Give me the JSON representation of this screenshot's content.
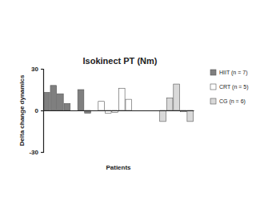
{
  "chart_data": {
    "type": "bar",
    "title": "Isokinect PT (Nm)",
    "x_label": "Patients",
    "y_label": "Delta change dynamics",
    "categories": [
      null,
      null,
      null,
      null,
      null,
      null,
      null,
      null,
      null,
      null,
      null,
      null,
      null,
      null,
      null,
      null,
      null,
      null,
      null,
      null,
      null,
      null
    ],
    "series": [
      {
        "name": "HIIT (n = 7)",
        "color": "#7f7f7f",
        "values": [
          13,
          18,
          12,
          5,
          0,
          15,
          -2,
          null,
          null,
          null,
          null,
          null,
          null,
          null,
          null,
          null,
          null,
          null,
          null,
          null,
          null,
          null
        ]
      },
      {
        "name": "CRT (n = 5)",
        "color": "#ffffff",
        "values": [
          null,
          null,
          null,
          null,
          null,
          null,
          null,
          null,
          6.5,
          -2,
          -1.5,
          16,
          8,
          null,
          null,
          null,
          null,
          null,
          null,
          null,
          null,
          null
        ]
      },
      {
        "name": "CG (n = 6)",
        "color": "#d9d9d9",
        "values": [
          null,
          null,
          null,
          null,
          null,
          null,
          null,
          null,
          null,
          null,
          null,
          null,
          null,
          null,
          null,
          null,
          0,
          -8,
          9,
          19,
          -1,
          -8
        ]
      }
    ],
    "ylim": [
      -30,
      30
    ],
    "yticks": [
      -30,
      0,
      30
    ],
    "tick_labels": "y",
    "legend": "right"
  }
}
